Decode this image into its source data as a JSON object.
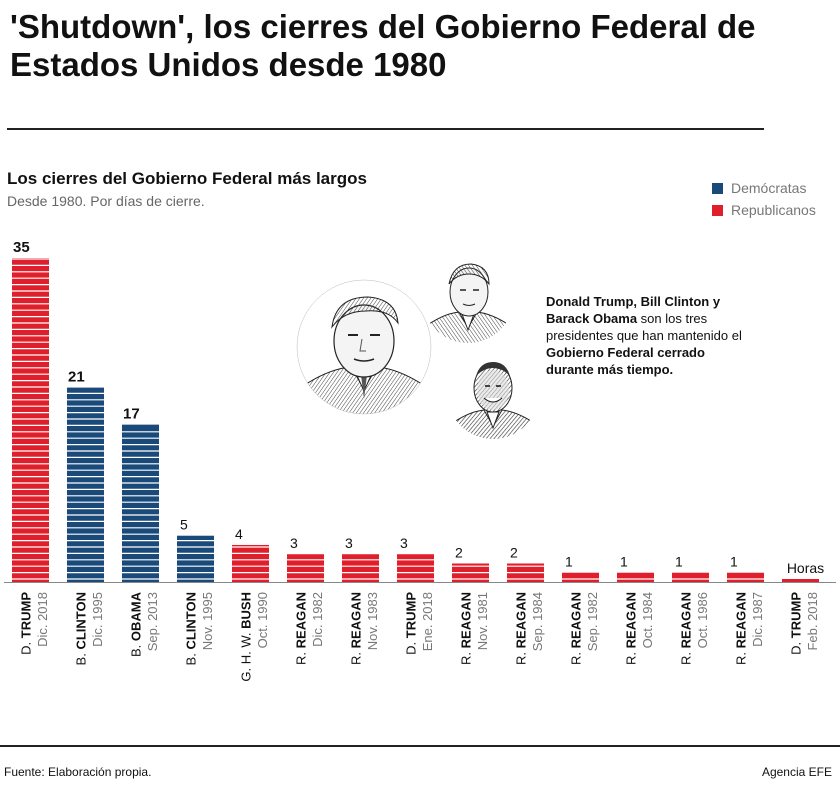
{
  "title": "'Shutdown', los cierres del Gobierno Federal de Estados Unidos desde 1980",
  "chart_data": {
    "type": "bar",
    "title": "Los cierres del Gobierno Federal más largos",
    "subtitle": "Desde 1980. Por días de cierre.",
    "unit": "días",
    "categories": [
      {
        "president": "D. TRUMP",
        "date": "Dic. 2018",
        "party": "Republicanos",
        "value": 35,
        "label": "35"
      },
      {
        "president": "B. CLINTON",
        "date": "Dic. 1995",
        "party": "Demócratas",
        "value": 21,
        "label": "21"
      },
      {
        "president": "B. OBAMA",
        "date": "Sep. 2013",
        "party": "Demócratas",
        "value": 17,
        "label": "17"
      },
      {
        "president": "B. CLINTON",
        "date": "Nov. 1995",
        "party": "Demócratas",
        "value": 5,
        "label": "5"
      },
      {
        "president": "G. H. W. BUSH",
        "date": "Oct. 1990",
        "party": "Republicanos",
        "value": 4,
        "label": "4"
      },
      {
        "president": "R. REAGAN",
        "date": "Dic. 1982",
        "party": "Republicanos",
        "value": 3,
        "label": "3"
      },
      {
        "president": "R. REAGAN",
        "date": "Nov. 1983",
        "party": "Republicanos",
        "value": 3,
        "label": "3"
      },
      {
        "president": "D. TRUMP",
        "date": "Ene. 2018",
        "party": "Republicanos",
        "value": 3,
        "label": "3"
      },
      {
        "president": "R. REAGAN",
        "date": "Nov. 1981",
        "party": "Republicanos",
        "value": 2,
        "label": "2"
      },
      {
        "president": "R. REAGAN",
        "date": "Sep. 1984",
        "party": "Republicanos",
        "value": 2,
        "label": "2"
      },
      {
        "president": "R. REAGAN",
        "date": "Sep. 1982",
        "party": "Republicanos",
        "value": 1,
        "label": "1"
      },
      {
        "president": "R. REAGAN",
        "date": "Oct. 1984",
        "party": "Republicanos",
        "value": 1,
        "label": "1"
      },
      {
        "president": "R. REAGAN",
        "date": "Oct. 1986",
        "party": "Republicanos",
        "value": 1,
        "label": "1"
      },
      {
        "president": "R. REAGAN",
        "date": "Dic. 1987",
        "party": "Republicanos",
        "value": 1,
        "label": "1"
      },
      {
        "president": "D. TRUMP",
        "date": "Feb. 2018",
        "party": "Republicanos",
        "value": 0.1,
        "label": "Horas"
      }
    ],
    "ylim": [
      0,
      35
    ],
    "grid": false,
    "legend_position": "top-right",
    "legend": [
      {
        "name": "Demócratas",
        "color": "#1a4a7a"
      },
      {
        "name": "Republicanos",
        "color": "#e01f2d"
      }
    ]
  },
  "callout": {
    "bold1": "Donald Trump, Bill Clinton y Barack Obama",
    "normal": " son los tres presidentes que han mantenido el ",
    "bold2": "Gobierno Federal cerrado durante más tiempo."
  },
  "portraits": [
    "Donald Trump",
    "Bill Clinton",
    "Barack Obama"
  ],
  "footer": {
    "source": "Fuente: Elaboración propia.",
    "agency": "Agencia EFE"
  }
}
